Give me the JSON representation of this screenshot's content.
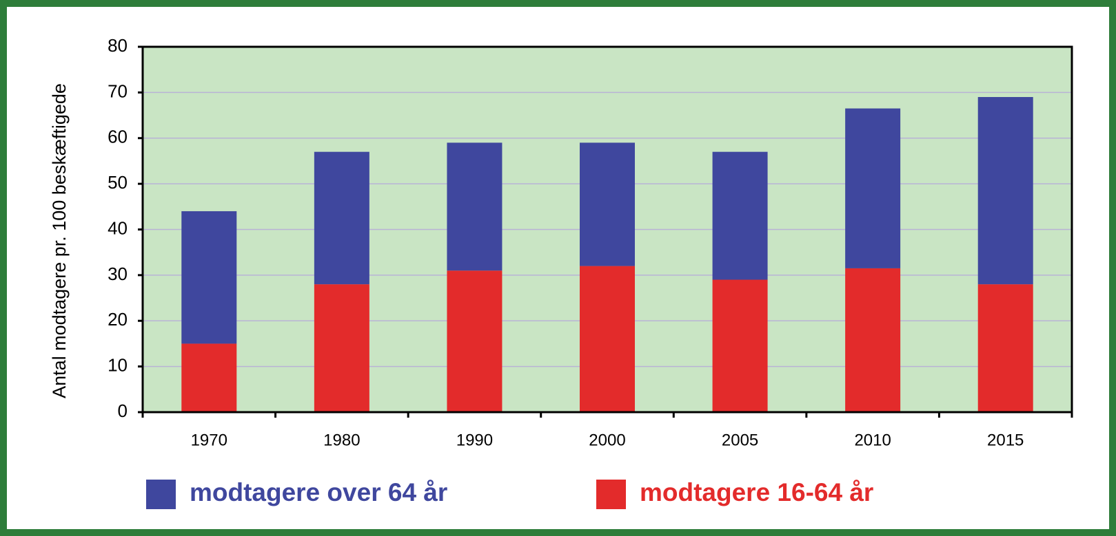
{
  "chart_data": {
    "type": "stacked_bar",
    "y_label": "Antal modtagere pr. 100 beskæftigede",
    "categories": [
      "1970",
      "1980",
      "1990",
      "2000",
      "2005",
      "2010",
      "2015"
    ],
    "series": [
      {
        "name": "modtagere 16-64 år",
        "color": "#e32b2b",
        "values": [
          15,
          28,
          31,
          32,
          29,
          31.5,
          28
        ]
      },
      {
        "name": "modtagere over 64 år",
        "color": "#3f479e",
        "values": [
          29,
          29,
          28,
          27,
          28,
          35,
          41
        ]
      }
    ],
    "ylim": [
      0,
      80
    ],
    "yticks": [
      0,
      10,
      20,
      30,
      40,
      50,
      60,
      70,
      80
    ],
    "grid": true
  }
}
